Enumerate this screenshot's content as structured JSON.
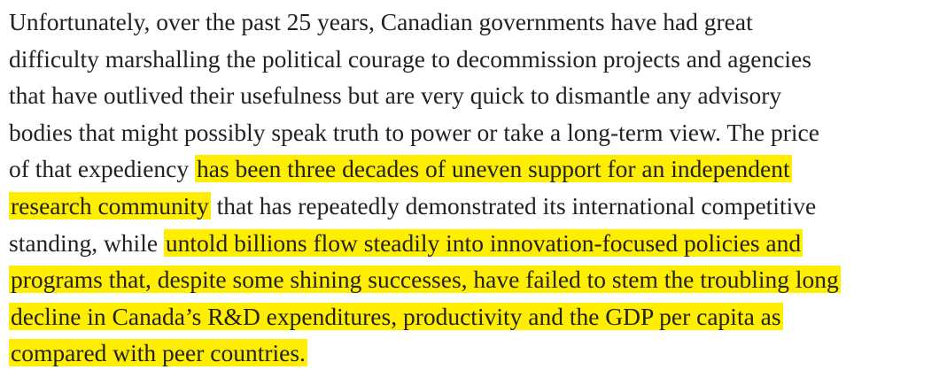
{
  "paragraph": {
    "lines": [
      [
        "Unfortunately, over the past 25 years, Canadian governments have had great"
      ],
      [
        "difficulty marshalling the political courage to decommission projects and agencies"
      ],
      [
        "that have outlived their usefulness but are very quick to dismantle any advisory"
      ],
      [
        "bodies that might possibly speak truth to power or take a long-term view. The price"
      ],
      [
        "of that expediency",
        "has been three decades of uneven support for an independent"
      ],
      [
        "research community",
        "that has repeatedly demonstrated its international competitive"
      ],
      [
        "standing, while",
        "untold billions flow steadily into innovation-focused policies and"
      ],
      [
        "programs that, despite some shining successes, have failed to stem the troubling long"
      ],
      [
        "decline in Canada’s R&D expenditures, productivity and the GDP per capita as"
      ],
      [
        "compared with peer countries."
      ]
    ]
  }
}
